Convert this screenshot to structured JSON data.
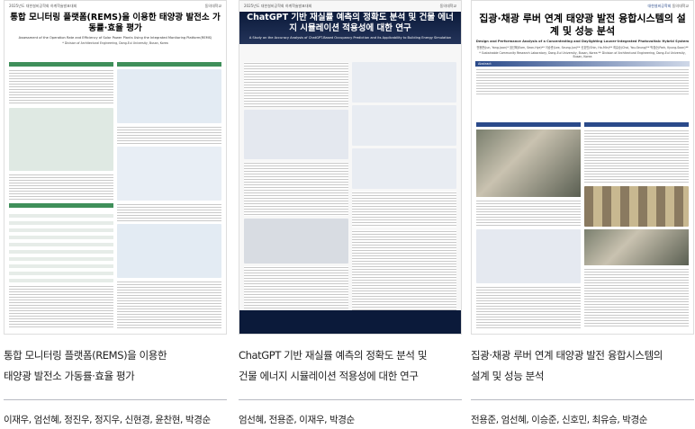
{
  "posters": [
    {
      "conference": "2025년도 대한설비공학회 하계학술발표대회",
      "university": "동의대학교",
      "poster_title": "통합 모니터링 플랫폼(REMS)을 이용한 태양광 발전소 가동률·효율 평가",
      "poster_subtitle": "Assessment of the Operation Rate and Efficiency of Solar Power Plants Using the Integrated Monitoring Platform(REMS)",
      "affiliation": "* Division of Architectural Engineering, Dong-Eui University, Busan, Korea",
      "title_line1": "통합 모니터링 플랫폼(REMS)을 이용한",
      "title_line2": "태양광 발전소 가동률·효율 평가",
      "authors": "이재우, 엄선혜, 정진우, 정지우, 신현경, 윤찬현, 박경순"
    },
    {
      "conference": "2025년도 대한설비공학회 하계학술발표대회",
      "university": "동의대학교",
      "poster_title": "ChatGPT 기반 재실률 예측의 정확도 분석 및 건물 에너지 시뮬레이션 적용성에 대한 연구",
      "poster_subtitle": "A Study on the Accuracy Analysis of ChatGPT-Based Occupancy Prediction and its Applicability to Building Energy Simulation",
      "title_line1": "ChatGPT 기반 재실률 예측의 정확도 분석 및",
      "title_line2": "건물 에너지 시뮬레이션 적용성에 대한 연구",
      "authors": "엄선혜, 전용준, 이재우, 박경순"
    },
    {
      "society": "대한설비공학회",
      "university": "동의대학교",
      "poster_title": "집광·채광 루버 연계 태양광 발전 융합시스템의 설계 및 성능 분석",
      "poster_subtitle": "Design and Performance Analysis of a Concentrating and Daylighting Louver-Integrated Photovoltaic Hybrid System",
      "poster_authors": "전용준(Jun, Yong-Joon)* 엄선혜(Eom, Seon-Hye)** 이승준(Lee, Seung-Jun)** 신호민(Shin, Ho-Min)** 최유승(Choi, You-Seung)** 박경순(Park, Kyung-Soon)**",
      "affiliation": "* Sustainable Community Research Laboratory, Dong-Eui University, Busan, Korea ** Division of Architectural Engineering, Dong-Eui University, Busan, Korea",
      "section": "Abstract",
      "title_line1": "집광·채광 루버 연계 태양광 발전 융합시스템의",
      "title_line2": "설계 및 성능 분석",
      "authors": "전용준, 엄선혜, 이승준, 신호민, 최유승, 박경순"
    }
  ],
  "colors": {
    "poster1_accent": "#3f8f5a",
    "poster2_header": "#0b1a3a",
    "poster3_accent": "#2a4a8a"
  }
}
